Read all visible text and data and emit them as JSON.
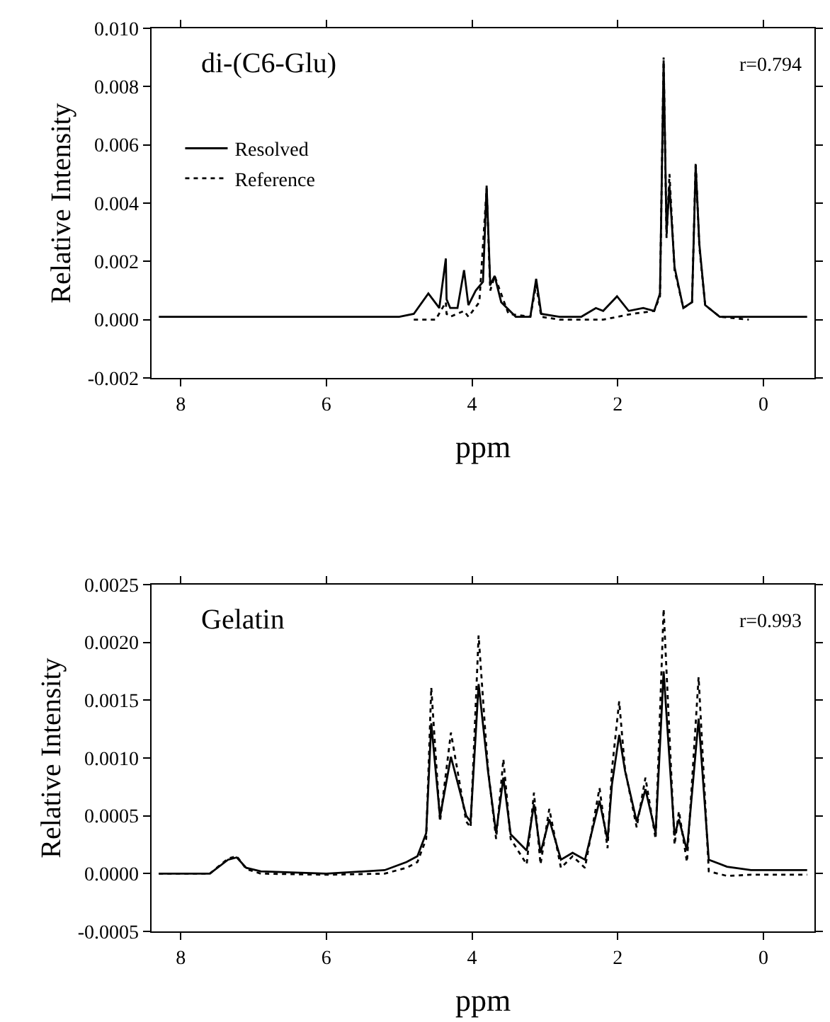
{
  "chart_data": [
    {
      "type": "line",
      "title": "di-(C6-Glu)",
      "xlabel": "ppm",
      "ylabel": "Relative Intensity",
      "annotations": [
        "r=0.794"
      ],
      "xlim": [
        8.4,
        -0.7
      ],
      "xticks": [
        8,
        6,
        4,
        2,
        0
      ],
      "ylim": [
        -0.002,
        0.01
      ],
      "yticks": [
        -0.002,
        {
          "value": 0,
          "label": "0.000"
        },
        0.002,
        0.004,
        0.006,
        0.008,
        {
          "value": 0.01,
          "label": "0.010"
        }
      ],
      "grid": false,
      "legend": "top left",
      "series": [
        {
          "name": "Resolved",
          "color": "#000000",
          "line_style": "solid",
          "x": [
            8.3,
            7.5,
            6.5,
            5.5,
            5.0,
            4.8,
            4.6,
            4.45,
            4.36,
            4.35,
            4.3,
            4.2,
            4.11,
            4.05,
            3.95,
            3.85,
            3.8,
            3.75,
            3.69,
            3.6,
            3.4,
            3.2,
            3.12,
            3.05,
            2.8,
            2.5,
            2.3,
            2.2,
            2.01,
            1.85,
            1.65,
            1.5,
            1.42,
            1.37,
            1.33,
            1.29,
            1.22,
            1.1,
            0.98,
            0.93,
            0.88,
            0.8,
            0.6,
            0.2,
            -0.2,
            -0.6
          ],
          "values": [
            0.0001,
            0.0001,
            0.0001,
            0.0001,
            0.0001,
            0.0002,
            0.0009,
            0.0004,
            0.0021,
            0.0007,
            0.0004,
            0.0004,
            0.0017,
            0.0005,
            0.001,
            0.0013,
            0.0046,
            0.0012,
            0.0015,
            0.0006,
            0.0001,
            0.0001,
            0.0014,
            0.0002,
            0.0001,
            0.0001,
            0.0004,
            0.0003,
            0.0008,
            0.0003,
            0.0004,
            0.0003,
            0.0009,
            0.0089,
            0.003,
            0.0046,
            0.0018,
            0.0004,
            0.0006,
            0.0053,
            0.0026,
            0.0005,
            0.0001,
            0.0001,
            0.0001,
            0.0001
          ]
        },
        {
          "name": "Reference",
          "color": "#000000",
          "line_style": "dotted",
          "x": [
            4.8,
            4.5,
            4.36,
            4.35,
            4.3,
            4.11,
            4.05,
            3.9,
            3.8,
            3.75,
            3.69,
            3.5,
            3.2,
            3.12,
            3.05,
            2.8,
            2.2,
            2.0,
            1.8,
            1.5,
            1.42,
            1.37,
            1.33,
            1.29,
            1.22,
            1.1,
            0.98,
            0.93,
            0.88,
            0.8,
            0.6,
            0.2
          ],
          "values": [
            0,
            0,
            0.0006,
            0.0002,
            0.0001,
            0.0003,
            0.0001,
            0.0006,
            0.0045,
            0.001,
            0.0015,
            0.0002,
            0.0001,
            0.0012,
            0.0001,
            0,
            0,
            0.0001,
            0.0002,
            0.0003,
            0.0008,
            0.009,
            0.0028,
            0.005,
            0.0017,
            0.0004,
            0.0006,
            0.0054,
            0.0025,
            0.0005,
            0.0001,
            0
          ]
        }
      ]
    },
    {
      "type": "line",
      "title": "Gelatin",
      "xlabel": "ppm",
      "ylabel": "Relative Intensity",
      "annotations": [
        "r=0.993"
      ],
      "xlim": [
        8.4,
        -0.7
      ],
      "xticks": [
        8,
        6,
        4,
        2,
        0
      ],
      "ylim": [
        -0.0005,
        0.0025
      ],
      "yticks": [
        -0.0005,
        {
          "value": 0,
          "label": "0.0000"
        },
        0.0005,
        {
          "value": 0.001,
          "label": "0.0010"
        },
        0.0015,
        {
          "value": 0.002,
          "label": "0.0020"
        },
        0.0025
      ],
      "grid": false,
      "legend": false,
      "series": [
        {
          "color": "#000000",
          "line_style": "solid",
          "x": [
            8.3,
            7.6,
            7.35,
            7.23,
            7.1,
            6.9,
            6.0,
            5.2,
            4.9,
            4.75,
            4.63,
            4.56,
            4.44,
            4.29,
            4.08,
            4.02,
            3.91,
            3.81,
            3.78,
            3.67,
            3.57,
            3.47,
            3.25,
            3.15,
            3.06,
            2.94,
            2.78,
            2.62,
            2.45,
            2.25,
            2.14,
            2.08,
            1.98,
            1.9,
            1.74,
            1.62,
            1.48,
            1.37,
            1.22,
            1.16,
            1.05,
            0.89,
            0.75,
            0.5,
            0.17,
            -0.6
          ],
          "values": [
            0,
            0,
            0.00012,
            0.00014,
            5e-05,
            2e-05,
            0,
            3e-05,
            0.0001,
            0.00015,
            0.00035,
            0.0013,
            0.00049,
            0.00101,
            0.0005,
            0.00045,
            0.00164,
            0.00106,
            0.00088,
            0.00035,
            0.00083,
            0.00034,
            0.0002,
            0.0006,
            0.00018,
            0.00047,
            0.00012,
            0.00018,
            0.00012,
            0.00063,
            0.00029,
            0.00077,
            0.0012,
            0.00089,
            0.00045,
            0.00073,
            0.00035,
            0.00175,
            0.00033,
            0.00047,
            0.0002,
            0.00134,
            0.00012,
            6e-05,
            3e-05,
            3e-05
          ]
        },
        {
          "color": "#000000",
          "line_style": "dotted",
          "x": [
            8.3,
            7.6,
            7.35,
            7.23,
            7.1,
            6.9,
            6.0,
            5.2,
            4.9,
            4.75,
            4.63,
            4.56,
            4.44,
            4.29,
            4.08,
            4.02,
            3.91,
            3.81,
            3.78,
            3.67,
            3.57,
            3.47,
            3.25,
            3.15,
            3.06,
            2.94,
            2.78,
            2.62,
            2.45,
            2.25,
            2.14,
            2.08,
            1.98,
            1.9,
            1.74,
            1.62,
            1.48,
            1.37,
            1.22,
            1.16,
            1.05,
            0.89,
            0.75,
            0.5,
            0.17,
            -0.6
          ],
          "values": [
            0,
            0,
            0.00013,
            0.00015,
            4e-05,
            0,
            -1e-05,
            0,
            5e-05,
            0.0001,
            0.0003,
            0.00161,
            0.00045,
            0.00122,
            0.00045,
            0.0004,
            0.00206,
            0.00115,
            0.0009,
            0.0003,
            0.00099,
            0.0003,
            8e-05,
            0.0007,
            8e-05,
            0.00056,
            5e-05,
            0.00015,
            5e-05,
            0.00074,
            0.00022,
            0.0009,
            0.00149,
            0.0009,
            0.0004,
            0.00083,
            0.0003,
            0.00229,
            0.00025,
            0.00054,
            0.0001,
            0.0017,
            2e-05,
            -2e-05,
            -1e-05,
            -1e-05
          ]
        }
      ]
    }
  ]
}
